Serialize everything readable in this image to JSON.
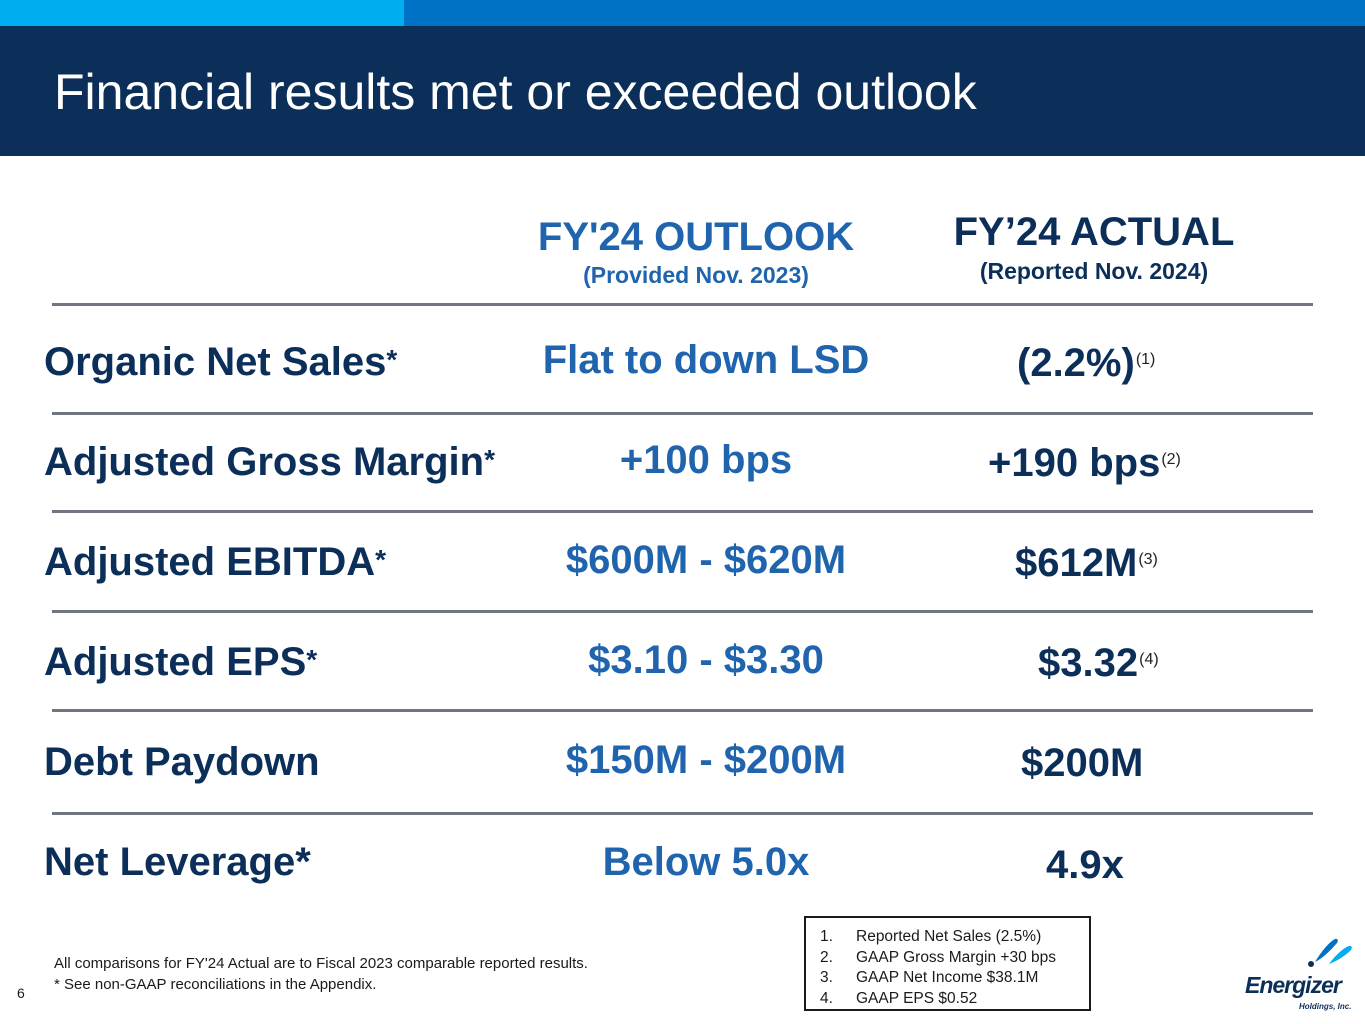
{
  "title": "Financial results met or exceeded outlook",
  "columns": {
    "outlook": {
      "heading": "FY'24 OUTLOOK",
      "subheading": "(Provided Nov. 2023)"
    },
    "actual": {
      "heading": "FY’24 ACTUAL",
      "subheading": "(Reported Nov. 2024)"
    }
  },
  "rows": [
    {
      "label": "Organic Net Sales",
      "star": "*",
      "outlook": "Flat to down LSD",
      "actual": "(2.2%)",
      "footnote": "(1)"
    },
    {
      "label": "Adjusted Gross Margin",
      "star": "*",
      "outlook": "+100 bps",
      "actual": "+190 bps",
      "footnote": "(2)"
    },
    {
      "label": "Adjusted EBITDA",
      "star": "*",
      "outlook": "$600M - $620M",
      "actual": "$612M",
      "footnote": "(3)"
    },
    {
      "label": "Adjusted EPS",
      "star": "*",
      "outlook": "$3.10 - $3.30",
      "actual": "$3.32",
      "footnote": "(4)"
    },
    {
      "label": "Debt Paydown",
      "star": "",
      "outlook": "$150M - $200M",
      "actual": "$200M",
      "footnote": ""
    },
    {
      "label": "Net Leverage",
      "star": "*",
      "outlook": "Below 5.0x",
      "actual": "4.9x",
      "footnote": ""
    }
  ],
  "footer": {
    "line1": "All comparisons for FY'24 Actual are to Fiscal 2023 comparable reported results.",
    "line2": "* See non-GAAP reconciliations in the Appendix."
  },
  "page_number": "6",
  "footnotes": [
    {
      "num": "1.",
      "text": "Reported Net Sales (2.5%)"
    },
    {
      "num": "2.",
      "text": "GAAP Gross Margin +30 bps"
    },
    {
      "num": "3.",
      "text": "GAAP Net Income $38.1M"
    },
    {
      "num": "4.",
      "text": "GAAP EPS $0.52"
    }
  ],
  "logo": {
    "name": "Energizer",
    "sub": "Holdings, Inc."
  },
  "colors": {
    "title_band": "#0b2f59",
    "accent_light": "#00aeef",
    "accent_mid": "#0072c6",
    "outlook_blue": "#1f64ad",
    "navy": "#0b2f59"
  }
}
